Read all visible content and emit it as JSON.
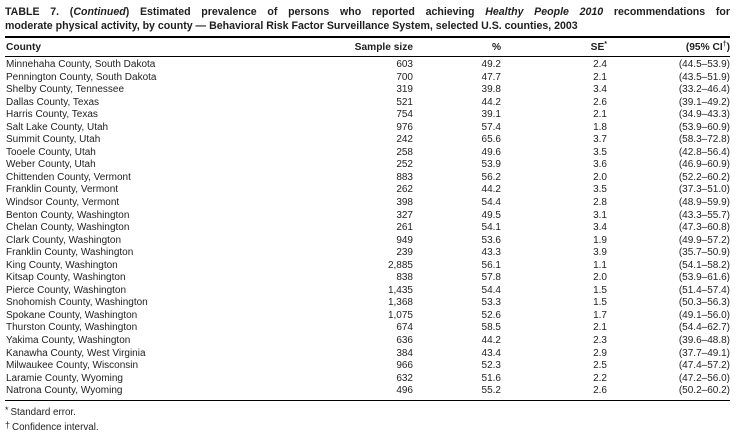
{
  "title": {
    "line1_part1": "TABLE 7. (",
    "line1_italic1": "Continued",
    "line1_part2": ") Estimated prevalence of persons who reported achieving ",
    "line1_italic2": "Healthy People 2010",
    "line1_part3": " recommendations for",
    "line2": "moderate physical activity, by county — Behavioral Risk Factor Surveillance System, selected U.S. counties, 2003"
  },
  "table": {
    "header": {
      "county": "County",
      "sample_size": "Sample size",
      "percent": "%",
      "se": "SE",
      "se_sup": "*",
      "ci_pre": "(95% CI",
      "ci_sup": "†",
      "ci_post": ")"
    },
    "rows": [
      {
        "county": "Minnehaha County, South Dakota",
        "sample_size": "603",
        "percent": "49.2",
        "se": "2.4",
        "ci": "(44.5–53.9)"
      },
      {
        "county": "Pennington County, South Dakota",
        "sample_size": "700",
        "percent": "47.7",
        "se": "2.1",
        "ci": "(43.5–51.9)"
      },
      {
        "county": "Shelby County, Tennessee",
        "sample_size": "319",
        "percent": "39.8",
        "se": "3.4",
        "ci": "(33.2–46.4)"
      },
      {
        "county": "Dallas County, Texas",
        "sample_size": "521",
        "percent": "44.2",
        "se": "2.6",
        "ci": "(39.1–49.2)"
      },
      {
        "county": "Harris County, Texas",
        "sample_size": "754",
        "percent": "39.1",
        "se": "2.1",
        "ci": "(34.9–43.3)"
      },
      {
        "county": "Salt Lake County, Utah",
        "sample_size": "976",
        "percent": "57.4",
        "se": "1.8",
        "ci": "(53.9–60.9)"
      },
      {
        "county": "Summit County, Utah",
        "sample_size": "242",
        "percent": "65.6",
        "se": "3.7",
        "ci": "(58.3–72.8)"
      },
      {
        "county": "Tooele County, Utah",
        "sample_size": "258",
        "percent": "49.6",
        "se": "3.5",
        "ci": "(42.8–56.4)"
      },
      {
        "county": "Weber County, Utah",
        "sample_size": "252",
        "percent": "53.9",
        "se": "3.6",
        "ci": "(46.9–60.9)"
      },
      {
        "county": "Chittenden County, Vermont",
        "sample_size": "883",
        "percent": "56.2",
        "se": "2.0",
        "ci": "(52.2–60.2)"
      },
      {
        "county": "Franklin County, Vermont",
        "sample_size": "262",
        "percent": "44.2",
        "se": "3.5",
        "ci": "(37.3–51.0)"
      },
      {
        "county": "Windsor County, Vermont",
        "sample_size": "398",
        "percent": "54.4",
        "se": "2.8",
        "ci": "(48.9–59.9)"
      },
      {
        "county": "Benton County, Washington",
        "sample_size": "327",
        "percent": "49.5",
        "se": "3.1",
        "ci": "(43.3–55.7)"
      },
      {
        "county": "Chelan County, Washington",
        "sample_size": "261",
        "percent": "54.1",
        "se": "3.4",
        "ci": "(47.3–60.8)"
      },
      {
        "county": "Clark County, Washington",
        "sample_size": "949",
        "percent": "53.6",
        "se": "1.9",
        "ci": "(49.9–57.2)"
      },
      {
        "county": "Franklin County, Washington",
        "sample_size": "239",
        "percent": "43.3",
        "se": "3.9",
        "ci": "(35.7–50.9)"
      },
      {
        "county": "King County, Washington",
        "sample_size": "2,885",
        "percent": "56.1",
        "se": "1.1",
        "ci": "(54.1–58.2)"
      },
      {
        "county": "Kitsap County, Washington",
        "sample_size": "838",
        "percent": "57.8",
        "se": "2.0",
        "ci": "(53.9–61.6)"
      },
      {
        "county": "Pierce County, Washington",
        "sample_size": "1,435",
        "percent": "54.4",
        "se": "1.5",
        "ci": "(51.4–57.4)"
      },
      {
        "county": "Snohomish County, Washington",
        "sample_size": "1,368",
        "percent": "53.3",
        "se": "1.5",
        "ci": "(50.3–56.3)"
      },
      {
        "county": "Spokane County, Washington",
        "sample_size": "1,075",
        "percent": "52.6",
        "se": "1.7",
        "ci": "(49.1–56.0)"
      },
      {
        "county": "Thurston County, Washington",
        "sample_size": "674",
        "percent": "58.5",
        "se": "2.1",
        "ci": "(54.4–62.7)"
      },
      {
        "county": "Yakima County, Washington",
        "sample_size": "636",
        "percent": "44.2",
        "se": "2.3",
        "ci": "(39.6–48.8)"
      },
      {
        "county": "Kanawha County, West Virginia",
        "sample_size": "384",
        "percent": "43.4",
        "se": "2.9",
        "ci": "(37.7–49.1)"
      },
      {
        "county": "Milwaukee County, Wisconsin",
        "sample_size": "966",
        "percent": "52.3",
        "se": "2.5",
        "ci": "(47.4–57.2)"
      },
      {
        "county": "Laramie County, Wyoming",
        "sample_size": "632",
        "percent": "51.6",
        "se": "2.2",
        "ci": "(47.2–56.0)"
      },
      {
        "county": "Natrona County, Wyoming",
        "sample_size": "496",
        "percent": "55.2",
        "se": "2.6",
        "ci": "(50.2–60.2)"
      }
    ]
  },
  "footnotes": [
    {
      "marker": "*",
      "text": "Standard error."
    },
    {
      "marker": "†",
      "text": "Confidence interval."
    }
  ]
}
